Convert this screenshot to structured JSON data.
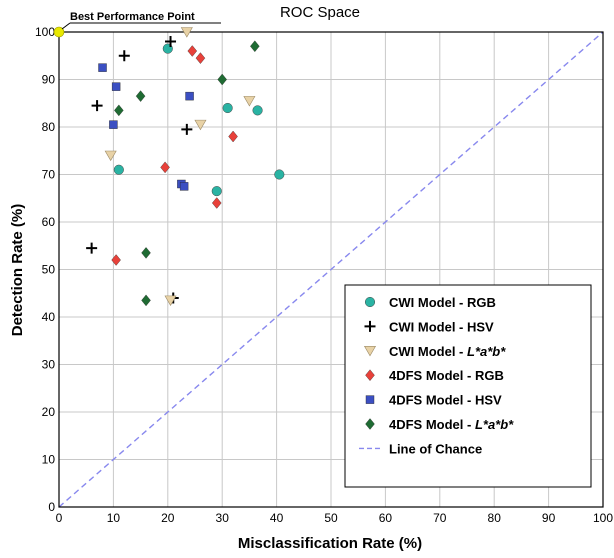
{
  "chart_data": {
    "type": "scatter",
    "title": "ROC Space",
    "xlabel": "Misclassification Rate (%)",
    "ylabel": "Detection Rate (%)",
    "xlim": [
      0,
      100
    ],
    "ylim": [
      0,
      100
    ],
    "xticks": [
      0,
      10,
      20,
      30,
      40,
      50,
      60,
      70,
      80,
      90,
      100
    ],
    "yticks": [
      0,
      10,
      20,
      30,
      40,
      50,
      60,
      70,
      80,
      90,
      100
    ],
    "grid": true,
    "legend_position": "bottom-right",
    "annotation": {
      "text": "Best Performance Point",
      "x": 0,
      "y": 100,
      "color": "#e8e800"
    },
    "chance_line": {
      "name": "Line of Chance",
      "x": [
        0,
        100
      ],
      "y": [
        0,
        100
      ],
      "color": "#8888ee"
    },
    "series": [
      {
        "name": "CWI Model - RGB",
        "name_parts": [
          {
            "t": "CWI Model - RGB",
            "i": false
          }
        ],
        "marker": "circle",
        "color": "#2ab3a3",
        "points": [
          [
            20,
            96.5
          ],
          [
            11,
            71
          ],
          [
            29,
            66.5
          ],
          [
            31,
            84
          ],
          [
            36.5,
            83.5
          ],
          [
            40.5,
            70
          ]
        ]
      },
      {
        "name": "CWI Model - HSV",
        "name_parts": [
          {
            "t": "CWI Model - HSV",
            "i": false
          }
        ],
        "marker": "plus",
        "color": "#000000",
        "points": [
          [
            20.5,
            98
          ],
          [
            12,
            95
          ],
          [
            7,
            84.5
          ],
          [
            23.5,
            79.5
          ],
          [
            6,
            54.5
          ],
          [
            21,
            44
          ]
        ]
      },
      {
        "name": "CWI Model - L*a*b*",
        "name_parts": [
          {
            "t": "CWI Model - ",
            "i": false
          },
          {
            "t": "L*a*b*",
            "i": true
          }
        ],
        "marker": "triangle-down",
        "color": "#e8d2a6",
        "points": [
          [
            23.5,
            100
          ],
          [
            26,
            80.5
          ],
          [
            35,
            85.5
          ],
          [
            9.5,
            74
          ],
          [
            20.5,
            43.5
          ]
        ]
      },
      {
        "name": "4DFS Model - RGB",
        "name_parts": [
          {
            "t": "4DFS Model - RGB",
            "i": false
          }
        ],
        "marker": "diamond",
        "color": "#e8413a",
        "points": [
          [
            24.5,
            96
          ],
          [
            26,
            94.5
          ],
          [
            32,
            78
          ],
          [
            19.5,
            71.5
          ],
          [
            29,
            64
          ],
          [
            10.5,
            52
          ]
        ]
      },
      {
        "name": "4DFS Model - HSV",
        "name_parts": [
          {
            "t": "4DFS Model - HSV",
            "i": false
          }
        ],
        "marker": "square",
        "color": "#3b4fc2",
        "points": [
          [
            8,
            92.5
          ],
          [
            10.5,
            88.5
          ],
          [
            10,
            80.5
          ],
          [
            24,
            86.5
          ],
          [
            22.5,
            68
          ],
          [
            23,
            67.5
          ]
        ]
      },
      {
        "name": "4DFS Model - L*a*b*",
        "name_parts": [
          {
            "t": "4DFS Model - ",
            "i": false
          },
          {
            "t": "L*a*b*",
            "i": true
          }
        ],
        "marker": "diamond",
        "color": "#1f6b33",
        "points": [
          [
            36,
            97
          ],
          [
            30,
            90
          ],
          [
            15,
            86.5
          ],
          [
            11,
            83.5
          ],
          [
            16,
            53.5
          ],
          [
            16,
            43.5
          ]
        ]
      }
    ]
  }
}
